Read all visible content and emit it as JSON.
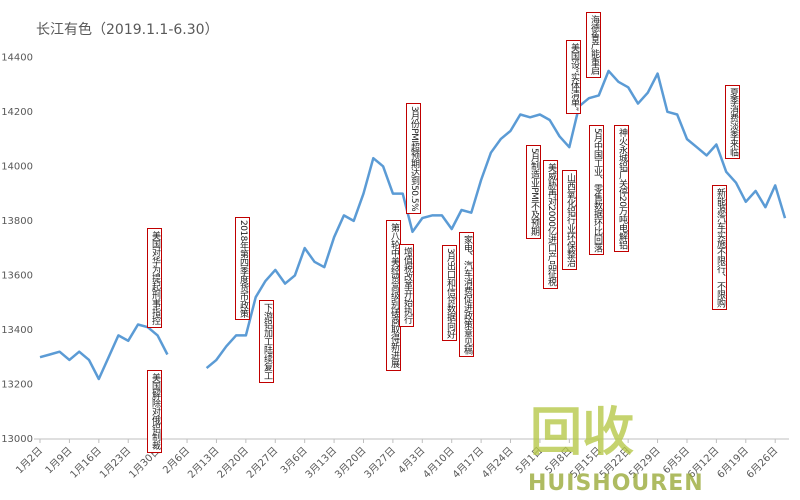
{
  "chart_data": {
    "type": "line",
    "title": "长江有色（2019.1.1-6.30）",
    "color": "#5b9bd5",
    "categories": [
      "1月2日",
      null,
      null,
      "1月9日",
      null,
      null,
      "1月16日",
      null,
      null,
      "1月23日",
      null,
      null,
      "1月30日",
      null,
      null,
      "2月6日",
      null,
      null,
      "2月13日",
      null,
      null,
      "2月20日",
      null,
      null,
      "2月27日",
      null,
      null,
      "3月6日",
      null,
      null,
      "3月13日",
      null,
      null,
      "3月20日",
      null,
      null,
      "3月27日",
      null,
      null,
      "4月3日",
      null,
      null,
      "4月10日",
      null,
      null,
      "4月17日",
      null,
      null,
      "4月24日",
      null,
      null,
      "5月1日",
      null,
      null,
      "5月8日",
      null,
      null,
      "5月15日",
      null,
      null,
      "5月22日",
      null,
      null,
      "5月29日",
      null,
      null,
      "6月5日",
      null,
      null,
      "6月12日",
      null,
      null,
      "6月19日",
      null,
      null,
      "6月26日",
      null
    ],
    "values": [
      13300,
      13310,
      13320,
      13290,
      13320,
      13290,
      13220,
      13300,
      13380,
      13360,
      13420,
      13410,
      13380,
      13310,
      null,
      null,
      null,
      13260,
      13290,
      13340,
      13380,
      13380,
      13520,
      13580,
      13620,
      13570,
      13600,
      13700,
      13650,
      13630,
      13740,
      13820,
      13800,
      13900,
      14030,
      14000,
      13900,
      13900,
      13760,
      13810,
      13820,
      13820,
      13770,
      13840,
      13830,
      13950,
      14050,
      14100,
      14130,
      14190,
      14180,
      14190,
      14170,
      14110,
      14070,
      14220,
      14250,
      14260,
      14350,
      14310,
      14290,
      14230,
      14270,
      14340,
      14200,
      14190,
      14100,
      14070,
      14040,
      14080,
      13980,
      13940,
      13870,
      13910,
      13850,
      13930,
      13810
    ],
    "ylim": [
      13000,
      14500
    ],
    "yticks": [
      13000,
      13200,
      13400,
      13600,
      13800,
      14000,
      14200,
      14400
    ],
    "grid": false,
    "annotations": [
      "美国对华为提起刑事指控",
      "美国解除对俄铝制裁",
      "2018年第四季度货币政策",
      "下游铝加工陆续复工",
      "第八轮中美经贸高级别磋商取得新进展",
      "增值税改革开始执行",
      "3月份PMI超预期达到50.5%",
      "3月出口和信贷数据向好",
      "家电、汽车消费促进政策意见稿",
      "5月制造业PMI不及预期",
      "美威胁再对2000亿进口产品征税",
      "山西氧化铝行业环保整治",
      "美国设“实体清单”",
      "海德鲁产能重启",
      "5月中国工业、零售数据环比回落",
      "神火永城铝厂关停20万吨电解铝",
      "夏季消费淡季来临",
      "新能源汽车实施不限行、不限购"
    ],
    "watermark": {
      "text": "回收",
      "subtext": "HUISHOUREN"
    }
  }
}
